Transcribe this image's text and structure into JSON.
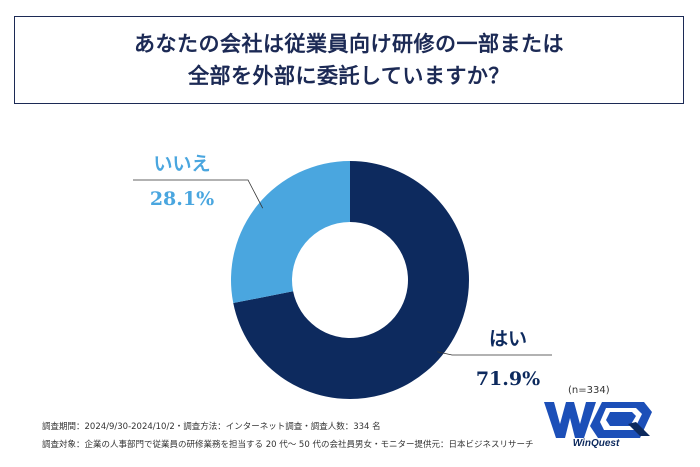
{
  "title": {
    "line1": "あなたの会社は従業員向け研修の一部または",
    "line2": "全部を外部に委託していますか？"
  },
  "sample_size": "(n=334)",
  "footer": {
    "line1": "調査期間：2024/9/30-2024/10/2・調査方法：インターネット調査・調査人数：334 名",
    "line2": "調査対象：企業の人事部門で従業員の研修業務を担当する 20 代～ 50 代の会社員男女・モニター提供元：日本ビジネスリサーチ"
  },
  "logo": {
    "text": "WinQuest",
    "mark_letters": "WQ"
  },
  "colors": {
    "navy": "#0d2a5e",
    "light_blue": "#4aa6df",
    "title": "#1c2a55"
  },
  "chart_data": {
    "type": "pie",
    "donut": true,
    "slices": [
      {
        "label": "はい",
        "value": 71.9,
        "display": "71.9%",
        "color": "#0d2a5e"
      },
      {
        "label": "いいえ",
        "value": 28.1,
        "display": "28.1%",
        "color": "#4aa6df"
      }
    ]
  }
}
